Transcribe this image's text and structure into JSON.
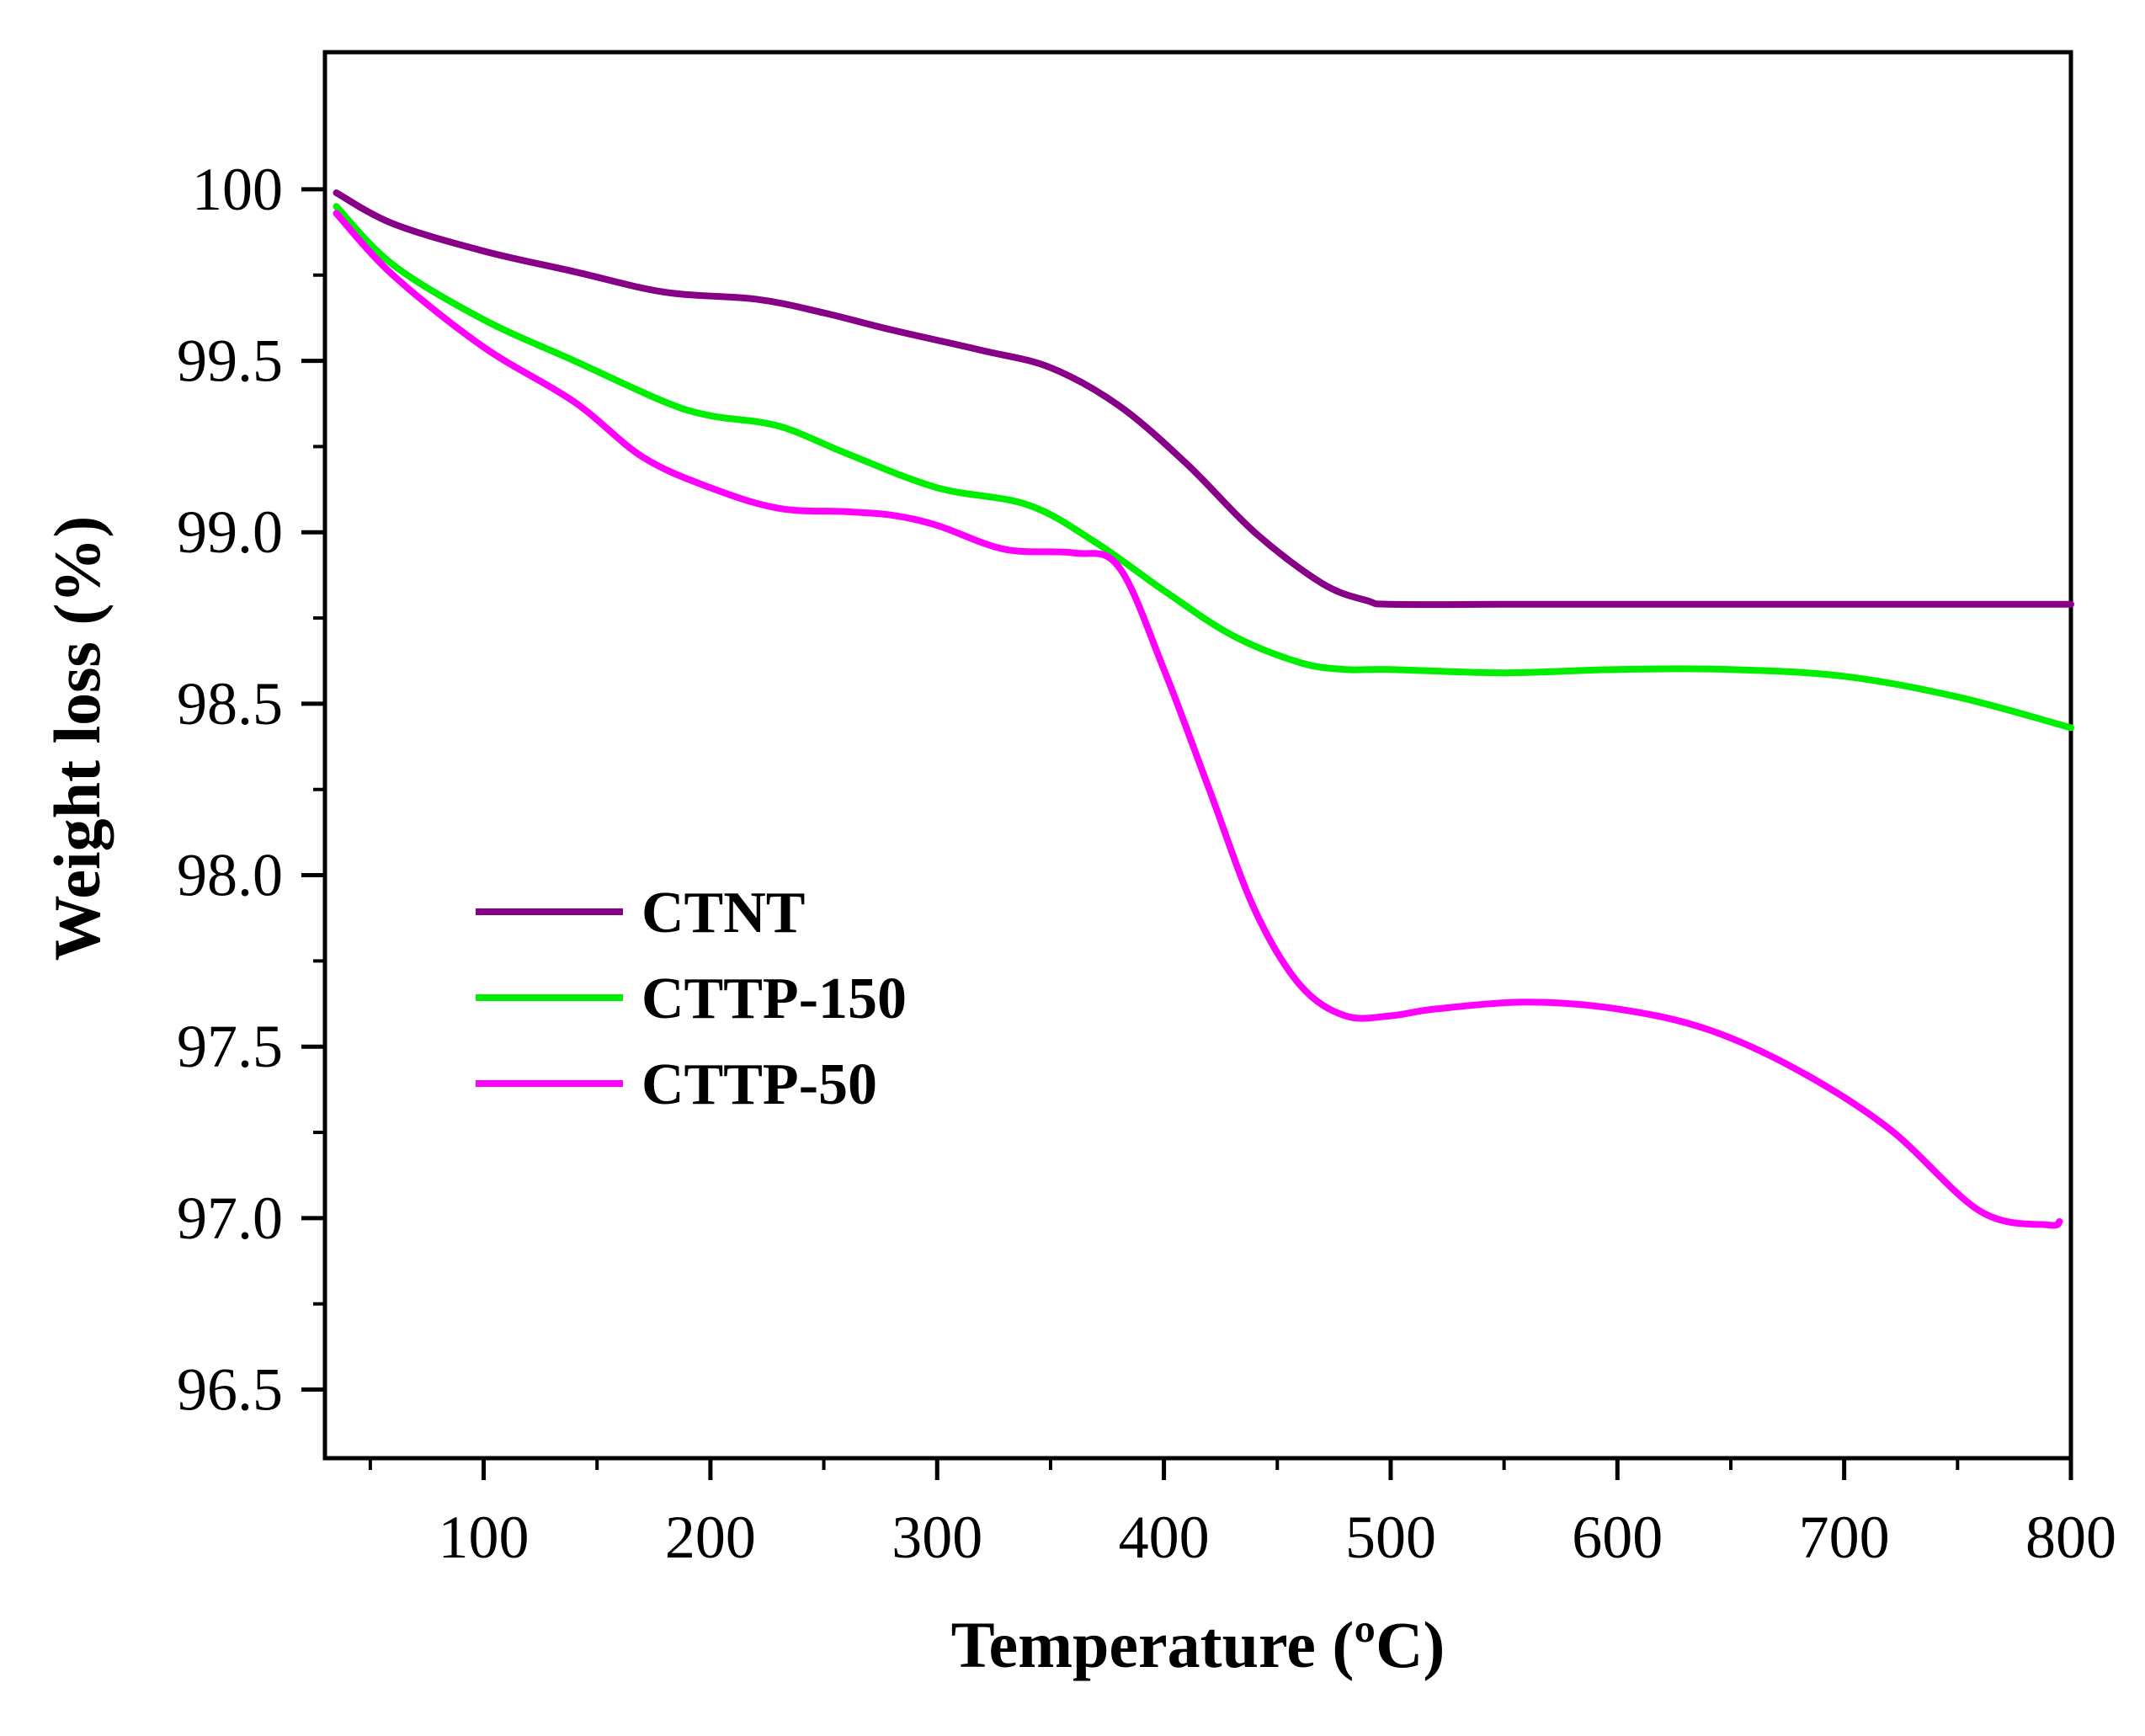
{
  "chart_data": {
    "type": "line",
    "xlabel": "Temperature (ºC)",
    "ylabel": "Weight loss (%)",
    "xlim": [
      30,
      800
    ],
    "ylim": [
      96.3,
      100.4
    ],
    "x_ticks": [
      100,
      200,
      300,
      400,
      500,
      600,
      700,
      800
    ],
    "x_tick_labels": [
      "100",
      "200",
      "300",
      "400",
      "500",
      "600",
      "700",
      "800"
    ],
    "x_minor_ticks": [
      50,
      150,
      250,
      350,
      450,
      550,
      650,
      750
    ],
    "y_ticks": [
      100,
      99.5,
      99.0,
      98.5,
      98.0,
      97.5,
      97.0,
      96.5
    ],
    "y_tick_labels": [
      "100",
      "99.5",
      "99.0",
      "98.5",
      "98.0",
      "97.5",
      "97.0",
      "96.5"
    ],
    "grid": false,
    "legend_position": "lower-left",
    "series": [
      {
        "name": "CTNT",
        "color": "#880088",
        "x": [
          35,
          60,
          100,
          140,
          180,
          220,
          250,
          280,
          320,
          350,
          380,
          410,
          440,
          470,
          490,
          500,
          550,
          600,
          700,
          800
        ],
        "y": [
          99.99,
          99.9,
          99.82,
          99.76,
          99.7,
          99.68,
          99.64,
          99.59,
          99.53,
          99.48,
          99.37,
          99.2,
          99.0,
          98.85,
          98.8,
          98.79,
          98.79,
          98.79,
          98.79,
          98.79
        ]
      },
      {
        "name": "CTTP-150",
        "color": "#00ee00",
        "x": [
          35,
          60,
          100,
          140,
          180,
          200,
          230,
          260,
          300,
          340,
          370,
          400,
          430,
          460,
          480,
          500,
          550,
          600,
          650,
          700,
          750,
          800
        ],
        "y": [
          99.95,
          99.78,
          99.62,
          99.5,
          99.38,
          99.34,
          99.31,
          99.23,
          99.13,
          99.08,
          98.97,
          98.83,
          98.7,
          98.62,
          98.6,
          98.6,
          98.59,
          98.6,
          98.6,
          98.58,
          98.52,
          98.43
        ]
      },
      {
        "name": "CTTP-50",
        "color": "#ff00ff",
        "x": [
          35,
          60,
          100,
          140,
          170,
          200,
          230,
          260,
          280,
          300,
          330,
          360,
          380,
          400,
          420,
          440,
          460,
          480,
          500,
          520,
          560,
          600,
          640,
          680,
          720,
          760,
          790,
          795
        ],
        "y": [
          99.93,
          99.75,
          99.54,
          99.38,
          99.22,
          99.13,
          99.07,
          99.06,
          99.05,
          99.02,
          98.95,
          98.94,
          98.9,
          98.6,
          98.25,
          97.9,
          97.68,
          97.59,
          97.59,
          97.61,
          97.63,
          97.61,
          97.55,
          97.43,
          97.26,
          97.02,
          96.98,
          96.99
        ]
      }
    ]
  }
}
